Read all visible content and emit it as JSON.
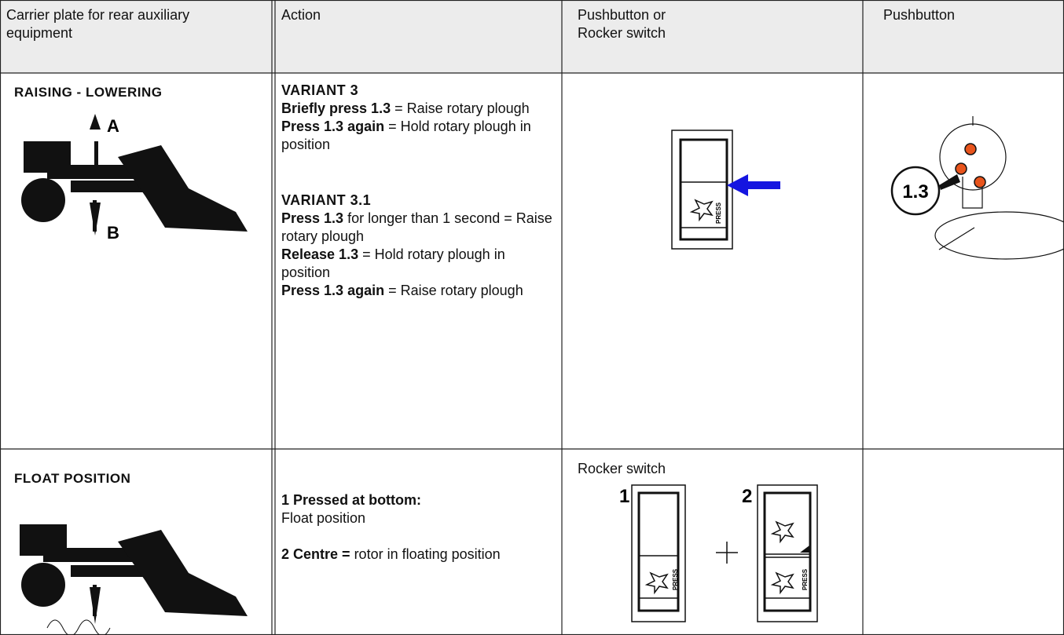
{
  "header": {
    "cells": [
      [
        "Carrier plate for rear auxiliary",
        "equipment"
      ],
      [
        "Action"
      ],
      [
        "Pushbutton or",
        "Rocker switch"
      ],
      [
        "Pushbutton"
      ]
    ]
  },
  "rows": [
    {
      "title": "RAISING - LOWERING",
      "figure_labels": [
        "A",
        "B"
      ],
      "action": [
        {
          "heading": "VARIANT 3",
          "lines": [
            {
              "bold": "Briefly press 1.3",
              "text": "= Raise rotary plough"
            },
            {
              "bold": "Press 1.3 again",
              "text": "= Hold rotary plough in position"
            }
          ]
        },
        {
          "heading": "VARIANT 3.1",
          "lines": [
            {
              "bold": "Press 1.3",
              "text": "for longer than 1 second = Raise rotary plough"
            },
            {
              "bold": "Release 1.3",
              "text": "= Hold rotary plough in position"
            },
            {
              "bold": "Press 1.3 again",
              "text": "= Raise rotary plough"
            }
          ]
        }
      ],
      "switch_label": "PRESS",
      "pushbutton_label": "1.3"
    },
    {
      "title": "FLOAT POSITION",
      "action": [
        {
          "bold": "1 Pressed at bottom:",
          "text": "Float position"
        },
        {
          "bold": "2 Centre =",
          "text": "rotor in floating position"
        }
      ],
      "switch_title": "Rocker switch",
      "switch_numbers": [
        "1",
        "2"
      ],
      "switch_label": "PRESS"
    }
  ]
}
